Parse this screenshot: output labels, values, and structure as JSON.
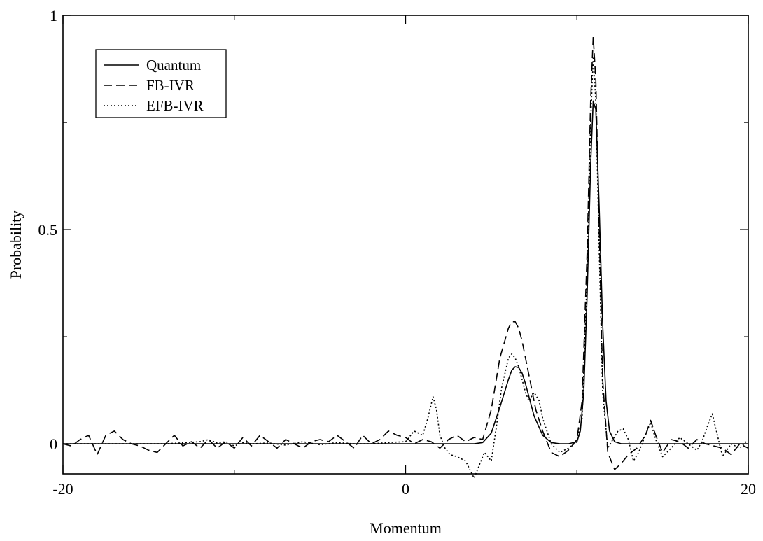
{
  "chart_data": {
    "type": "line",
    "title": "",
    "xlabel": "Momentum",
    "ylabel": "Probability",
    "xlim": [
      -20,
      20
    ],
    "ylim": [
      -0.07,
      1.0
    ],
    "x_ticks": [
      "-20",
      "0",
      "20"
    ],
    "y_ticks": [
      "0",
      "0.5",
      "1"
    ],
    "x_tick_values": [
      -20,
      0,
      20
    ],
    "y_tick_values": [
      0,
      0.5,
      1
    ],
    "x_minor_tick_values": [
      -10,
      10
    ],
    "y_minor_tick_values": [
      0.25,
      0.75
    ],
    "grid": false,
    "legend_position": "top-left",
    "series": [
      {
        "name": "Quantum",
        "style": "solid",
        "x": [
          -20,
          4,
          4.5,
          5,
          5.5,
          6,
          6.2,
          6.4,
          6.6,
          6.8,
          7,
          7.2,
          7.5,
          8,
          8.5,
          9,
          9.5,
          10,
          10.2,
          10.4,
          10.6,
          10.8,
          10.95,
          11.1,
          11.3,
          11.5,
          11.7,
          11.9,
          12.2,
          12.6,
          20
        ],
        "y": [
          0,
          0,
          0.003,
          0.025,
          0.085,
          0.15,
          0.172,
          0.18,
          0.178,
          0.165,
          0.14,
          0.11,
          0.065,
          0.02,
          0.003,
          0,
          0,
          0.005,
          0.03,
          0.12,
          0.35,
          0.65,
          0.8,
          0.78,
          0.55,
          0.28,
          0.1,
          0.03,
          0.005,
          0,
          0
        ]
      },
      {
        "name": "FB-IVR",
        "style": "dashed",
        "x": [
          -20,
          -19.5,
          -19,
          -18.5,
          -18,
          -17.5,
          -17,
          -16.5,
          -16,
          -15.5,
          -15,
          -14.5,
          -14,
          -13.5,
          -13,
          -12.5,
          -12,
          -11.5,
          -11,
          -10.5,
          -10,
          -9.5,
          -9,
          -8.5,
          -8,
          -7.5,
          -7,
          -6.5,
          -6,
          -5.5,
          -5,
          -4.5,
          -4,
          -3.5,
          -3,
          -2.5,
          -2,
          -1.5,
          -1,
          -0.5,
          0,
          0.5,
          1,
          1.5,
          2,
          2.5,
          3,
          3.5,
          4,
          4.5,
          5,
          5.5,
          6,
          6.2,
          6.4,
          6.6,
          6.8,
          7,
          7.3,
          7.6,
          8,
          8.5,
          9,
          9.5,
          10,
          10.3,
          10.6,
          10.8,
          10.95,
          11.1,
          11.3,
          11.5,
          11.8,
          12.2,
          12.6,
          13,
          13.5,
          14,
          14.3,
          14.6,
          15,
          15.5,
          16,
          16.5,
          17,
          17.5,
          18,
          18.5,
          19,
          19.5,
          20
        ],
        "y": [
          0,
          -0.005,
          0.01,
          0.02,
          -0.025,
          0.02,
          0.03,
          0.01,
          0,
          -0.005,
          -0.015,
          -0.02,
          0,
          0.02,
          -0.005,
          0.005,
          -0.01,
          0.01,
          -0.01,
          0.005,
          -0.01,
          0.015,
          -0.005,
          0.02,
          0.005,
          -0.01,
          0.01,
          0,
          -0.01,
          0.005,
          0.01,
          0.005,
          0.02,
          0.005,
          -0.01,
          0.02,
          0,
          0.01,
          0.03,
          0.02,
          0.015,
          0,
          0.01,
          0.005,
          -0.01,
          0.01,
          0.02,
          0.005,
          0.015,
          0.01,
          0.08,
          0.2,
          0.27,
          0.285,
          0.285,
          0.27,
          0.24,
          0.2,
          0.14,
          0.08,
          0.03,
          -0.02,
          -0.03,
          -0.015,
          0.01,
          0.1,
          0.45,
          0.8,
          0.95,
          0.85,
          0.5,
          0.15,
          -0.02,
          -0.06,
          -0.045,
          -0.025,
          -0.01,
          0.02,
          0.055,
          0.02,
          -0.02,
          0.01,
          0.005,
          -0.01,
          0.01,
          0,
          -0.005,
          -0.01,
          -0.025,
          0,
          -0.01
        ]
      },
      {
        "name": "EFB-IVR",
        "style": "dotted",
        "x": [
          -20,
          -18,
          -16,
          -14,
          -12,
          -11.5,
          -11,
          -10.5,
          -10,
          -9.5,
          -9,
          -8,
          -7,
          -6,
          -5,
          -4,
          -3,
          -2,
          -1,
          0,
          0.5,
          1,
          1.3,
          1.6,
          1.8,
          2,
          2.3,
          2.6,
          3,
          3.5,
          4,
          4.3,
          4.6,
          5,
          5.3,
          5.6,
          6,
          6.2,
          6.4,
          6.6,
          6.8,
          7,
          7.2,
          7.5,
          7.8,
          8,
          8.5,
          9,
          9.5,
          10,
          10.3,
          10.6,
          10.8,
          10.95,
          11.1,
          11.3,
          11.5,
          11.8,
          12.1,
          12.4,
          12.7,
          13,
          13.3,
          13.6,
          14,
          14.3,
          14.6,
          15,
          15.5,
          16,
          16.5,
          17,
          17.3,
          17.6,
          17.9,
          18.2,
          18.5,
          19,
          19.5,
          20
        ],
        "y": [
          0,
          0,
          0,
          0,
          0.005,
          0.01,
          0.002,
          0.005,
          -0.005,
          0.003,
          0,
          0.002,
          -0.003,
          0.005,
          -0.002,
          0.003,
          0,
          0,
          0.003,
          0.005,
          0.03,
          0.02,
          0.06,
          0.11,
          0.08,
          0.02,
          -0.01,
          -0.025,
          -0.03,
          -0.04,
          -0.08,
          -0.05,
          -0.02,
          -0.04,
          0.04,
          0.13,
          0.2,
          0.21,
          0.2,
          0.18,
          0.15,
          0.12,
          0.1,
          0.12,
          0.1,
          0.06,
          0,
          -0.02,
          -0.01,
          0.005,
          0.06,
          0.4,
          0.75,
          0.9,
          0.8,
          0.45,
          0.12,
          -0.01,
          0.01,
          0.03,
          0.035,
          0.01,
          -0.04,
          -0.02,
          0.02,
          0.05,
          0.01,
          -0.03,
          -0.01,
          0.015,
          0,
          -0.015,
          0.005,
          0.04,
          0.07,
          0.02,
          -0.03,
          0,
          -0.01,
          0.01
        ]
      }
    ]
  }
}
